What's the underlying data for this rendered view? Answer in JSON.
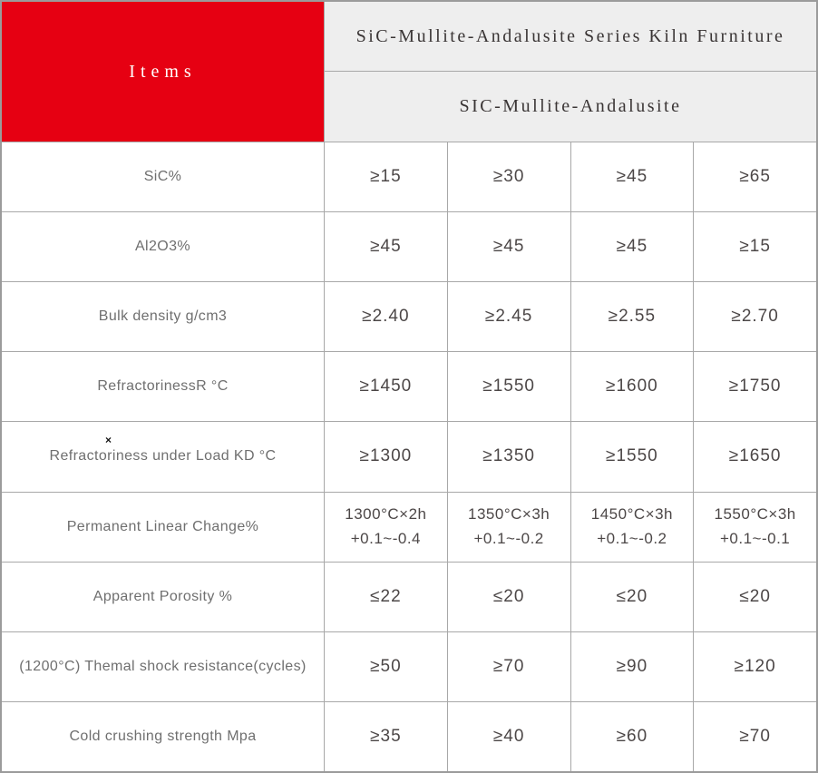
{
  "table": {
    "items_header": "Items",
    "series_title": "SiC-Mullite-Andalusite Series Kiln Furniture",
    "series_subtitle": "SIC-Mullite-Andalusite",
    "marker": "×",
    "colors": {
      "accent_red": "#e60012",
      "header_bg": "#eeeeee",
      "grid_line": "#a8a8a8",
      "label_text": "#6f6f6f",
      "value_text": "#4c4747"
    },
    "rows": [
      {
        "label": "SiC%",
        "values": [
          "≥15",
          "≥30",
          "≥45",
          "≥65"
        ]
      },
      {
        "label": "Al2O3%",
        "values": [
          "≥45",
          "≥45",
          "≥45",
          "≥15"
        ]
      },
      {
        "label": "Bulk density g/cm3",
        "values": [
          "≥2.40",
          "≥2.45",
          "≥2.55",
          "≥2.70"
        ]
      },
      {
        "label": "RefractorinessR °C",
        "values": [
          "≥1450",
          "≥1550",
          "≥1600",
          "≥1750"
        ]
      },
      {
        "label": "Refractoriness under Load KD °C",
        "values": [
          "≥1300",
          "≥1350",
          "≥1550",
          "≥1650"
        ]
      },
      {
        "label": "Permanent Linear Change%",
        "values2": [
          {
            "line1": "1300°C×2h",
            "line2": "+0.1~-0.4"
          },
          {
            "line1": "1350°C×3h",
            "line2": "+0.1~-0.2"
          },
          {
            "line1": "1450°C×3h",
            "line2": "+0.1~-0.2"
          },
          {
            "line1": "1550°C×3h",
            "line2": "+0.1~-0.1"
          }
        ]
      },
      {
        "label": "Apparent Porosity %",
        "values": [
          "≤22",
          "≤20",
          "≤20",
          "≤20"
        ]
      },
      {
        "label": "(1200°C) Themal shock resistance(cycles)",
        "values": [
          "≥50",
          "≥70",
          "≥90",
          "≥120"
        ]
      },
      {
        "label": "Cold crushing strength Mpa",
        "values": [
          "≥35",
          "≥40",
          "≥60",
          "≥70"
        ]
      }
    ]
  }
}
